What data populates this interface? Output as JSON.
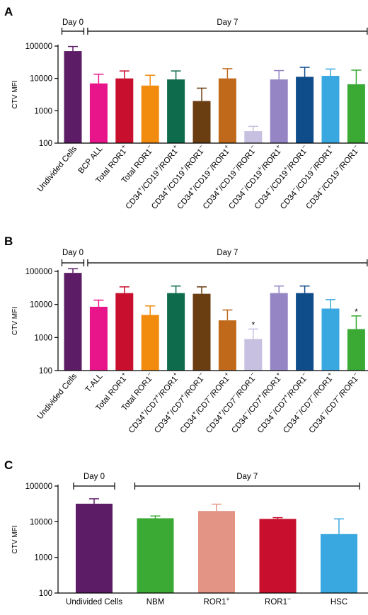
{
  "chart_data": [
    {
      "type": "bar",
      "panel": "A",
      "ylabel": "CTV MFI",
      "yscale": "log",
      "ylim": [
        100,
        100000
      ],
      "yticks": [
        "100",
        "1000",
        "10000",
        "100000"
      ],
      "brackets": [
        {
          "label": "Day 0",
          "from": 0,
          "to": 0
        },
        {
          "label": "Day 7",
          "from": 1,
          "to": 11
        }
      ],
      "categories": [
        {
          "pre": "Undivided Cells",
          "parts": []
        },
        {
          "pre": "BCP ALL",
          "parts": []
        },
        {
          "pre": "Total ROR1",
          "parts": [
            {
              "sup": "+"
            }
          ]
        },
        {
          "pre": "Total ROR1",
          "parts": [
            {
              "sup": "−"
            }
          ]
        },
        {
          "pre": "CD34",
          "parts": [
            {
              "sup": "+"
            },
            {
              "text": "/CD19"
            },
            {
              "sup": "+"
            },
            {
              "text": "/ROR1"
            },
            {
              "sup": "+"
            }
          ]
        },
        {
          "pre": "CD34",
          "parts": [
            {
              "sup": "+"
            },
            {
              "text": "/CD19"
            },
            {
              "sup": "+"
            },
            {
              "text": "/ROR1"
            },
            {
              "sup": "−"
            }
          ]
        },
        {
          "pre": "CD34",
          "parts": [
            {
              "sup": "+"
            },
            {
              "text": "/CD19"
            },
            {
              "sup": "−"
            },
            {
              "text": "/ROR1"
            },
            {
              "sup": "+"
            }
          ]
        },
        {
          "pre": "CD34",
          "parts": [
            {
              "sup": "+"
            },
            {
              "text": "/CD19"
            },
            {
              "sup": "−"
            },
            {
              "text": "/ROR1"
            },
            {
              "sup": "−"
            }
          ]
        },
        {
          "pre": "CD34",
          "parts": [
            {
              "sup": "−"
            },
            {
              "text": "/CD19"
            },
            {
              "sup": "+"
            },
            {
              "text": "/ROR1"
            },
            {
              "sup": "+"
            }
          ]
        },
        {
          "pre": "CD34",
          "parts": [
            {
              "sup": "−"
            },
            {
              "text": "/CD19"
            },
            {
              "sup": "+"
            },
            {
              "text": "/ROR1"
            },
            {
              "sup": "−"
            }
          ]
        },
        {
          "pre": "CD34",
          "parts": [
            {
              "sup": "−"
            },
            {
              "text": "/CD19"
            },
            {
              "sup": "−"
            },
            {
              "text": "/ROR1"
            },
            {
              "sup": "+"
            }
          ]
        },
        {
          "pre": "CD34",
          "parts": [
            {
              "sup": "−"
            },
            {
              "text": "/CD19"
            },
            {
              "sup": "−"
            },
            {
              "text": "/ROR1"
            },
            {
              "sup": "−"
            }
          ]
        }
      ],
      "values": [
        70000,
        7000,
        10000,
        6000,
        9300,
        2000,
        10000,
        235,
        9300,
        11200,
        12000,
        6600
      ],
      "errors": [
        97000,
        13500,
        17000,
        12500,
        17000,
        5000,
        20000,
        330,
        17500,
        22000,
        19500,
        18000
      ],
      "colors": [
        "#5c1d66",
        "#e8148a",
        "#c8102e",
        "#f28c0f",
        "#0e6b4c",
        "#6b3e12",
        "#c0691a",
        "#c7c0e0",
        "#9585c4",
        "#0f4c8a",
        "#3aa8e0",
        "#3aaa35"
      ],
      "significance": [
        "",
        "",
        "",
        "",
        "",
        "",
        "",
        "",
        "",
        "",
        "",
        ""
      ]
    },
    {
      "type": "bar",
      "panel": "B",
      "ylabel": "CTV MFI",
      "yscale": "log",
      "ylim": [
        100,
        100000
      ],
      "yticks": [
        "100",
        "1000",
        "10000",
        "100000"
      ],
      "brackets": [
        {
          "label": "Day 0",
          "from": 0,
          "to": 0
        },
        {
          "label": "Day 7",
          "from": 1,
          "to": 11
        }
      ],
      "categories": [
        {
          "pre": "Undivided Cells",
          "parts": []
        },
        {
          "pre": "T-ALL",
          "parts": []
        },
        {
          "pre": "Total ROR1",
          "parts": [
            {
              "sup": "+"
            }
          ]
        },
        {
          "pre": "Total ROR1",
          "parts": [
            {
              "sup": "−"
            }
          ]
        },
        {
          "pre": "CD34",
          "parts": [
            {
              "sup": "+"
            },
            {
              "text": "/CD7"
            },
            {
              "sup": "+"
            },
            {
              "text": "/ROR1"
            },
            {
              "sup": "+"
            }
          ]
        },
        {
          "pre": "CD34",
          "parts": [
            {
              "sup": "+"
            },
            {
              "text": "/CD7"
            },
            {
              "sup": "+"
            },
            {
              "text": "/ROR1"
            },
            {
              "sup": "−"
            }
          ]
        },
        {
          "pre": "CD34",
          "parts": [
            {
              "sup": "+"
            },
            {
              "text": "/CD7"
            },
            {
              "sup": "−"
            },
            {
              "text": "/ROR1"
            },
            {
              "sup": "+"
            }
          ]
        },
        {
          "pre": "CD34",
          "parts": [
            {
              "sup": "+"
            },
            {
              "text": "/CD7"
            },
            {
              "sup": "−"
            },
            {
              "text": "/ROR1"
            },
            {
              "sup": "−"
            }
          ]
        },
        {
          "pre": "CD34",
          "parts": [
            {
              "sup": "−"
            },
            {
              "text": "/CD7"
            },
            {
              "sup": "+"
            },
            {
              "text": "/ROR1"
            },
            {
              "sup": "+"
            }
          ]
        },
        {
          "pre": "CD34",
          "parts": [
            {
              "sup": "−"
            },
            {
              "text": "/CD7"
            },
            {
              "sup": "+"
            },
            {
              "text": "/ROR1"
            },
            {
              "sup": "−"
            }
          ]
        },
        {
          "pre": "CD34",
          "parts": [
            {
              "sup": "−"
            },
            {
              "text": "/CD7"
            },
            {
              "sup": "−"
            },
            {
              "text": "/ROR1"
            },
            {
              "sup": "+"
            }
          ]
        },
        {
          "pre": "CD34",
          "parts": [
            {
              "sup": "−"
            },
            {
              "text": "/CD7"
            },
            {
              "sup": "−"
            },
            {
              "text": "/ROR1"
            },
            {
              "sup": "−"
            }
          ]
        }
      ],
      "values": [
        90000,
        8500,
        22000,
        4800,
        22000,
        21000,
        3300,
        900,
        22000,
        22000,
        7500,
        1800
      ],
      "errors": [
        120000,
        13500,
        34000,
        9000,
        36000,
        34000,
        6800,
        1800,
        36000,
        36000,
        14000,
        4500
      ],
      "colors": [
        "#5c1d66",
        "#e8148a",
        "#c8102e",
        "#f28c0f",
        "#0e6b4c",
        "#6b3e12",
        "#c0691a",
        "#c7c0e0",
        "#9585c4",
        "#0f4c8a",
        "#3aa8e0",
        "#3aaa35"
      ],
      "significance": [
        "",
        "",
        "",
        "",
        "",
        "",
        "",
        "*",
        "",
        "",
        "",
        "*"
      ]
    },
    {
      "type": "bar",
      "panel": "C",
      "ylabel": "CTV MFI",
      "yscale": "log",
      "ylim": [
        100,
        100000
      ],
      "yticks": [
        "100",
        "1000",
        "10000",
        "100000"
      ],
      "brackets": [
        {
          "label": "Day 0",
          "from": 0,
          "to": 0
        },
        {
          "label": "Day 7",
          "from": 1,
          "to": 4
        }
      ],
      "categories": [
        {
          "pre": "Undivided Cells",
          "parts": []
        },
        {
          "pre": "NBM",
          "parts": []
        },
        {
          "pre": "ROR1",
          "parts": [
            {
              "sup": "+"
            }
          ]
        },
        {
          "pre": "ROR1",
          "parts": [
            {
              "sup": "−"
            }
          ]
        },
        {
          "pre": "HSC",
          "parts": []
        }
      ],
      "values": [
        32000,
        12500,
        20000,
        12000,
        4500
      ],
      "errors": [
        44000,
        14500,
        31000,
        13000,
        12000
      ],
      "colors": [
        "#5c1d66",
        "#3aaa35",
        "#e39485",
        "#c8102e",
        "#3aa8e0"
      ],
      "significance": [
        "",
        "",
        "",
        "",
        ""
      ]
    }
  ]
}
